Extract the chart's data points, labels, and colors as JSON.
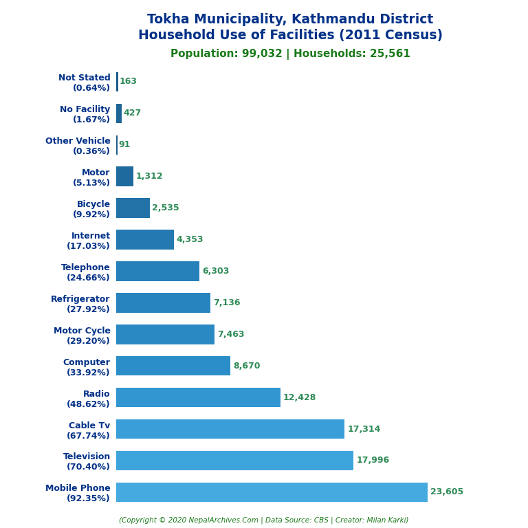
{
  "title_line1": "Tokha Municipality, Kathmandu District",
  "title_line2": "Household Use of Facilities (2011 Census)",
  "subtitle": "Population: 99,032 | Households: 25,561",
  "footer": "(Copyright © 2020 NepalArchives.Com | Data Source: CBS | Creator: Milan Karki)",
  "categories": [
    "Not Stated\n(0.64%)",
    "No Facility\n(1.67%)",
    "Other Vehicle\n(0.36%)",
    "Motor\n(5.13%)",
    "Bicycle\n(9.92%)",
    "Internet\n(17.03%)",
    "Telephone\n(24.66%)",
    "Refrigerator\n(27.92%)",
    "Motor Cycle\n(29.20%)",
    "Computer\n(33.92%)",
    "Radio\n(48.62%)",
    "Cable Tv\n(67.74%)",
    "Television\n(70.40%)",
    "Mobile Phone\n(92.35%)"
  ],
  "values": [
    163,
    427,
    91,
    1312,
    2535,
    4353,
    6303,
    7136,
    7463,
    8670,
    12428,
    17314,
    17996,
    23605
  ],
  "value_labels": [
    "163",
    "427",
    "91",
    "1,312",
    "2,535",
    "4,353",
    "6,303",
    "7,136",
    "7,463",
    "8,670",
    "12,428",
    "17,314",
    "17,996",
    "23,605"
  ],
  "title_color": "#003087",
  "subtitle_color": "#1a7a1a",
  "footer_color": "#1a7a1a",
  "label_color": "#003087",
  "value_color": "#2e8b57",
  "background_color": "#ffffff",
  "xlim": [
    0,
    26000
  ],
  "bar_colors": [
    "#1a5c8a",
    "#1e6596",
    "#1a5c8a",
    "#1e6a9e",
    "#2272a8",
    "#2479b0",
    "#2680ba",
    "#2884be",
    "#2a88c2",
    "#2c8ec8",
    "#3296d0",
    "#3a9fd8",
    "#3ea4dc",
    "#44aae0"
  ]
}
